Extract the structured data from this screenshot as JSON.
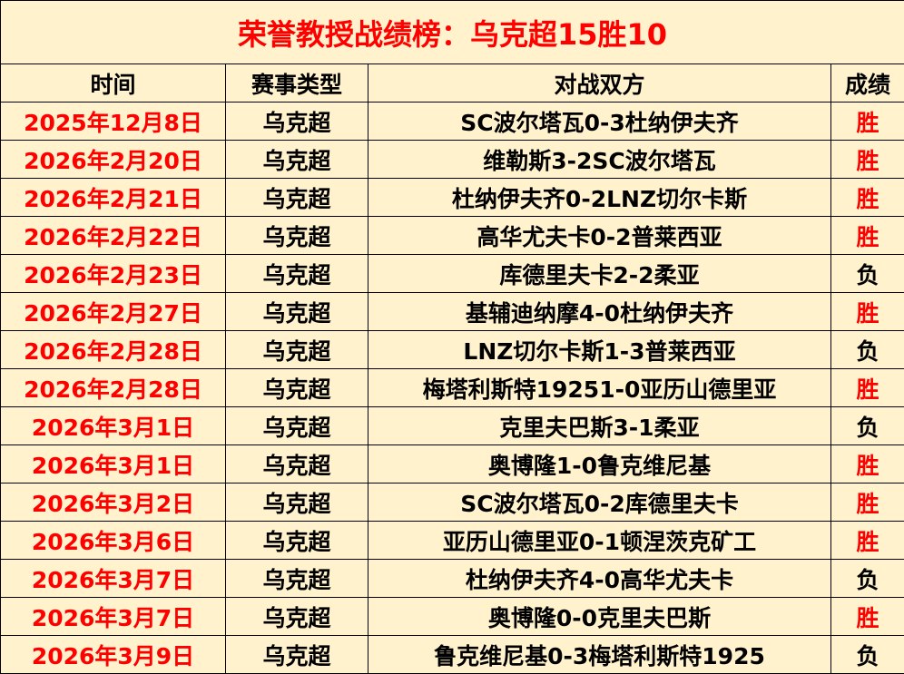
{
  "title": "荣誉教授战绩榜：乌克超15胜10",
  "headers": [
    "时间",
    "赛事类型",
    "对战双方",
    "成绩"
  ],
  "colors": {
    "background": "#fff2cc",
    "date": "#ff0000",
    "win": "#ff0000",
    "loss": "#000000"
  },
  "rows": [
    {
      "date": "2025年12月8日",
      "type": "乌克超",
      "match": "SC波尔塔瓦0-3杜纳伊夫齐",
      "result": "胜"
    },
    {
      "date": "2026年2月20日",
      "type": "乌克超",
      "match": "维勒斯3-2SC波尔塔瓦",
      "result": "胜"
    },
    {
      "date": "2026年2月21日",
      "type": "乌克超",
      "match": "杜纳伊夫齐0-2LNZ切尔卡斯",
      "result": "胜"
    },
    {
      "date": "2026年2月22日",
      "type": "乌克超",
      "match": "高华尤夫卡0-2普莱西亚",
      "result": "胜"
    },
    {
      "date": "2026年2月23日",
      "type": "乌克超",
      "match": "库德里夫卡2-2柔亚",
      "result": "负"
    },
    {
      "date": "2026年2月27日",
      "type": "乌克超",
      "match": "基辅迪纳摩4-0杜纳伊夫齐",
      "result": "胜"
    },
    {
      "date": "2026年2月28日",
      "type": "乌克超",
      "match": "LNZ切尔卡斯1-3普莱西亚",
      "result": "负"
    },
    {
      "date": "2026年2月28日",
      "type": "乌克超",
      "match": "梅塔利斯特19251-0亚历山德里亚",
      "result": "胜"
    },
    {
      "date": "2026年3月1日",
      "type": "乌克超",
      "match": "克里夫巴斯3-1柔亚",
      "result": "负"
    },
    {
      "date": "2026年3月1日",
      "type": "乌克超",
      "match": "奥博隆1-0鲁克维尼基",
      "result": "胜"
    },
    {
      "date": "2026年3月2日",
      "type": "乌克超",
      "match": "SC波尔塔瓦0-2库德里夫卡",
      "result": "胜"
    },
    {
      "date": "2026年3月6日",
      "type": "乌克超",
      "match": "亚历山德里亚0-1顿涅茨克矿工",
      "result": "胜"
    },
    {
      "date": "2026年3月7日",
      "type": "乌克超",
      "match": "杜纳伊夫齐4-0高华尤夫卡",
      "result": "负"
    },
    {
      "date": "2026年3月7日",
      "type": "乌克超",
      "match": "奥博隆0-0克里夫巴斯",
      "result": "胜"
    },
    {
      "date": "2026年3月9日",
      "type": "乌克超",
      "match": "鲁克维尼基0-3梅塔利斯特1925",
      "result": "负"
    }
  ]
}
